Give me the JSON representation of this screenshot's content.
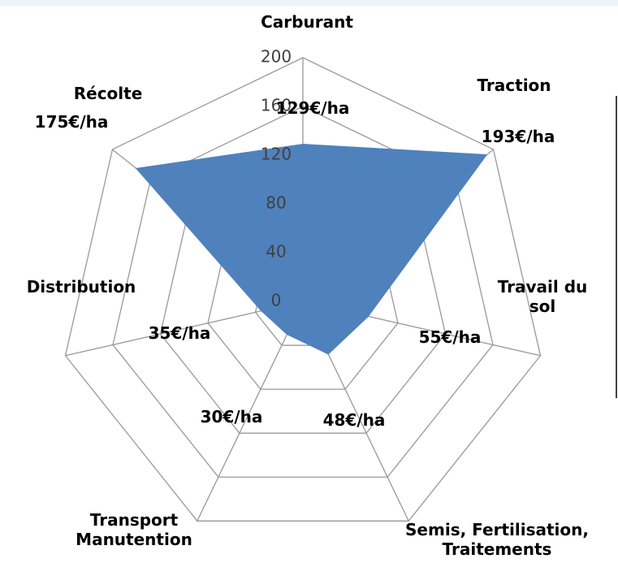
{
  "chart_data": {
    "type": "radar",
    "categories": [
      "Carburant",
      "Traction",
      "Travail du sol",
      "Semis, Fertilisation, Traitements",
      "Transport Manutention",
      "Distribution",
      "Récolte"
    ],
    "values": [
      129,
      193,
      55,
      48,
      30,
      35,
      175
    ],
    "value_labels": [
      "129€/ha",
      "193€/ha",
      "55€/ha",
      "48€/ha",
      "30€/ha",
      "35€/ha",
      "175€/ha"
    ],
    "color": "#4f81bd",
    "ylim": [
      0,
      200
    ],
    "yticks": [
      0,
      40,
      80,
      120,
      160,
      200
    ],
    "grid": true
  }
}
